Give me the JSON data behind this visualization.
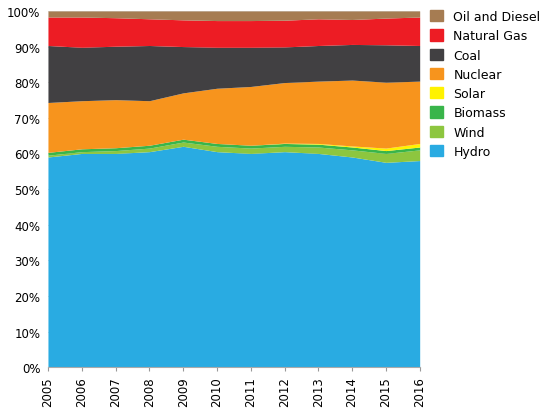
{
  "years": [
    2005,
    2006,
    2007,
    2008,
    2009,
    2010,
    2011,
    2012,
    2013,
    2014,
    2015,
    2016
  ],
  "series": {
    "Hydro": [
      59.0,
      60.0,
      60.0,
      60.5,
      62.0,
      60.5,
      60.0,
      60.5,
      60.0,
      59.0,
      57.5,
      58.0
    ],
    "Wind": [
      0.5,
      0.5,
      0.8,
      1.0,
      1.2,
      1.5,
      1.5,
      1.5,
      1.8,
      2.0,
      2.5,
      3.0
    ],
    "Biomass": [
      0.8,
      0.8,
      0.8,
      0.8,
      0.8,
      0.8,
      0.8,
      0.8,
      0.8,
      0.8,
      0.8,
      0.8
    ],
    "Solar": [
      0.0,
      0.0,
      0.0,
      0.0,
      0.0,
      0.0,
      0.0,
      0.1,
      0.2,
      0.3,
      0.7,
      1.0
    ],
    "Nuclear": [
      14.0,
      13.5,
      13.5,
      12.5,
      13.0,
      15.5,
      16.5,
      17.0,
      17.5,
      18.5,
      18.5,
      17.5
    ],
    "Coal": [
      16.0,
      15.0,
      15.0,
      15.5,
      13.0,
      11.5,
      11.0,
      10.0,
      10.0,
      10.0,
      10.5,
      10.0
    ],
    "Natural Gas": [
      8.0,
      8.5,
      8.0,
      7.5,
      7.5,
      7.5,
      7.5,
      7.5,
      7.5,
      7.0,
      7.5,
      8.0
    ],
    "Oil and Diesel": [
      1.7,
      1.7,
      1.9,
      2.2,
      2.5,
      2.7,
      2.7,
      2.6,
      2.2,
      2.4,
      2.0,
      1.7
    ]
  },
  "colors": {
    "Hydro": "#29ABE2",
    "Wind": "#8DC63F",
    "Biomass": "#39B54A",
    "Solar": "#FFF200",
    "Nuclear": "#F7941D",
    "Coal": "#414042",
    "Natural Gas": "#ED1C24",
    "Oil and Diesel": "#A67C52"
  },
  "stack_order": [
    "Hydro",
    "Wind",
    "Biomass",
    "Solar",
    "Nuclear",
    "Coal",
    "Natural Gas",
    "Oil and Diesel"
  ],
  "legend_order": [
    "Oil and Diesel",
    "Natural Gas",
    "Coal",
    "Nuclear",
    "Solar",
    "Biomass",
    "Wind",
    "Hydro"
  ],
  "ylim": [
    0,
    100
  ],
  "background_color": "#ffffff",
  "legend_fontsize": 9,
  "tick_fontsize": 8.5
}
